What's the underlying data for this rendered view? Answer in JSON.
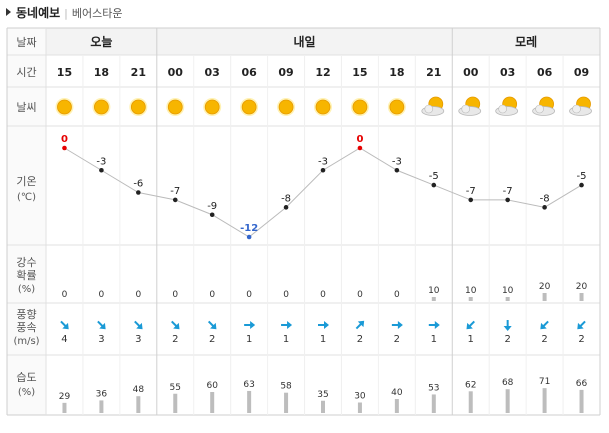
{
  "header": {
    "title": "동네예보",
    "location": "베어스타운"
  },
  "row_labels": {
    "date": "날짜",
    "time": "시간",
    "weather": "날씨",
    "temp": "기온",
    "temp_unit": "(℃)",
    "precip_line1": "강수",
    "precip_line2": "확률",
    "precip_unit": "(%)",
    "wind_line1": "풍향",
    "wind_line2": "풍속",
    "wind_unit": "(m/s)",
    "humidity": "습도",
    "humidity_unit": "(%)"
  },
  "days": [
    {
      "label": "오늘",
      "span": 3
    },
    {
      "label": "내일",
      "span": 8
    },
    {
      "label": "모레",
      "span": 4
    }
  ],
  "colors": {
    "grid": "#e1e1e1",
    "header_bg": "#f3f3f3",
    "label": "#555555",
    "hot": "#e60000",
    "cold": "#3366cc",
    "arrow": "#1a9ad6",
    "bar": "#bdbdbd",
    "sun": "#f7b500"
  },
  "chart_data": {
    "type": "table",
    "hours": [
      "15",
      "18",
      "21",
      "00",
      "03",
      "06",
      "09",
      "12",
      "15",
      "18",
      "21",
      "00",
      "03",
      "06",
      "09"
    ],
    "weather": [
      "sunny",
      "sunny",
      "sunny",
      "sunny",
      "sunny",
      "sunny",
      "sunny",
      "sunny",
      "sunny",
      "sunny",
      "partly-cloudy",
      "partly-cloudy",
      "partly-cloudy",
      "partly-cloudy",
      "partly-cloudy"
    ],
    "temperature": [
      0,
      -3,
      -6,
      -7,
      -9,
      -12,
      -8,
      -3,
      0,
      -3,
      -5,
      -7,
      -7,
      -8,
      -5
    ],
    "temperature_highlight": [
      "max",
      "",
      "",
      "",
      "",
      "min",
      "",
      "",
      "max",
      "",
      "",
      "",
      "",
      "",
      ""
    ],
    "temp_range": [
      -12,
      0
    ],
    "precip_probability": [
      0,
      0,
      0,
      0,
      0,
      0,
      0,
      0,
      0,
      0,
      10,
      10,
      10,
      20,
      20
    ],
    "wind_direction": [
      "se",
      "se",
      "se",
      "se",
      "se",
      "e",
      "e",
      "e",
      "ne",
      "e",
      "e",
      "sw",
      "s",
      "sw",
      "sw"
    ],
    "wind_speed": [
      4,
      3,
      3,
      2,
      2,
      1,
      1,
      1,
      2,
      2,
      1,
      1,
      2,
      2,
      2
    ],
    "humidity": [
      29,
      36,
      48,
      55,
      60,
      63,
      58,
      35,
      30,
      40,
      53,
      62,
      68,
      71,
      66
    ]
  }
}
